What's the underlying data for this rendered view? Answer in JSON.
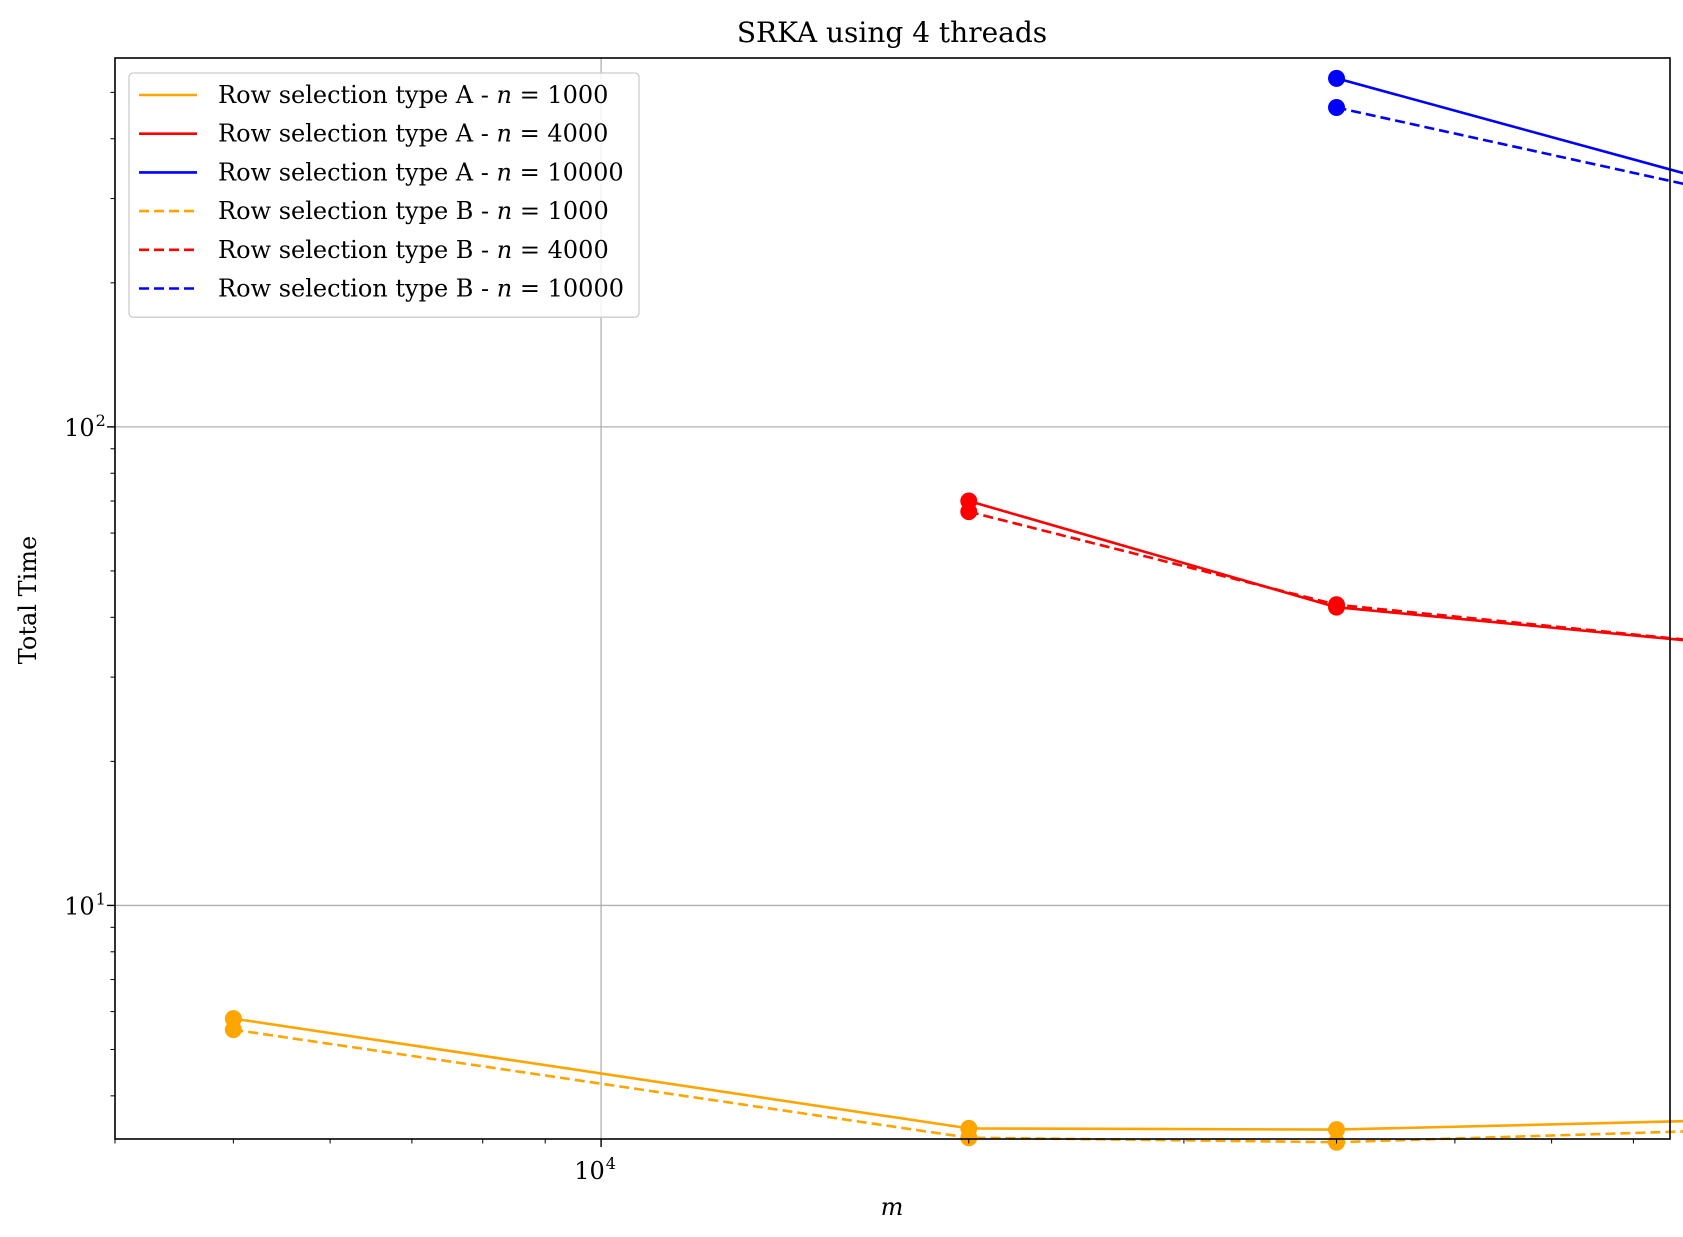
{
  "chart_data": {
    "type": "line",
    "title": "SRKA using 4 threads",
    "xlabel": "m",
    "ylabel": "Total Time",
    "xscale": "log",
    "yscale": "log",
    "xlim": [
      4000,
      75000
    ],
    "ylim": [
      3.25,
      590
    ],
    "grid": true,
    "legend_position": "upper-left",
    "x_tick_labels": [
      {
        "value": 10000,
        "base": "10",
        "exp": "4"
      }
    ],
    "y_tick_labels": [
      {
        "value": 10,
        "base": "10",
        "exp": "1"
      },
      {
        "value": 100,
        "base": "10",
        "exp": "2"
      }
    ],
    "series": [
      {
        "name": "Row selection type A - n = 1000",
        "label_prefix": "Row selection type A - ",
        "label_var": "n",
        "label_suffix": " = 1000",
        "color": "#FFA500",
        "dash": "solid",
        "points": [
          [
            5000,
            5.8
          ],
          [
            20000,
            3.42
          ],
          [
            40000,
            3.4
          ],
          [
            80000,
            3.55
          ]
        ]
      },
      {
        "name": "Row selection type A - n = 4000",
        "label_prefix": "Row selection type A - ",
        "label_var": "n",
        "label_suffix": " = 4000",
        "color": "#FF0000",
        "dash": "solid",
        "points": [
          [
            20000,
            70
          ],
          [
            40000,
            42
          ],
          [
            80000,
            35.5
          ]
        ]
      },
      {
        "name": "Row selection type A - n = 10000",
        "label_prefix": "Row selection type A - ",
        "label_var": "n",
        "label_suffix": " = 10000",
        "color": "#0000FF",
        "dash": "solid",
        "points": [
          [
            40000,
            535
          ],
          [
            80000,
            330
          ]
        ]
      },
      {
        "name": "Row selection type B - n = 1000",
        "label_prefix": "Row selection type B - ",
        "label_var": "n",
        "label_suffix": " = 1000",
        "color": "#FFA500",
        "dash": "dashed",
        "points": [
          [
            5000,
            5.5
          ],
          [
            20000,
            3.27
          ],
          [
            40000,
            3.2
          ],
          [
            80000,
            3.38
          ]
        ]
      },
      {
        "name": "Row selection type B - n = 4000",
        "label_prefix": "Row selection type B - ",
        "label_var": "n",
        "label_suffix": " = 4000",
        "color": "#FF0000",
        "dash": "dashed",
        "points": [
          [
            20000,
            66.5
          ],
          [
            40000,
            42.5
          ],
          [
            80000,
            35.6
          ]
        ]
      },
      {
        "name": "Row selection type B - n = 10000",
        "label_prefix": "Row selection type B - ",
        "label_var": "n",
        "label_suffix": " = 10000",
        "color": "#0000FF",
        "dash": "dashed",
        "points": [
          [
            40000,
            465
          ],
          [
            80000,
            315
          ]
        ]
      }
    ]
  }
}
